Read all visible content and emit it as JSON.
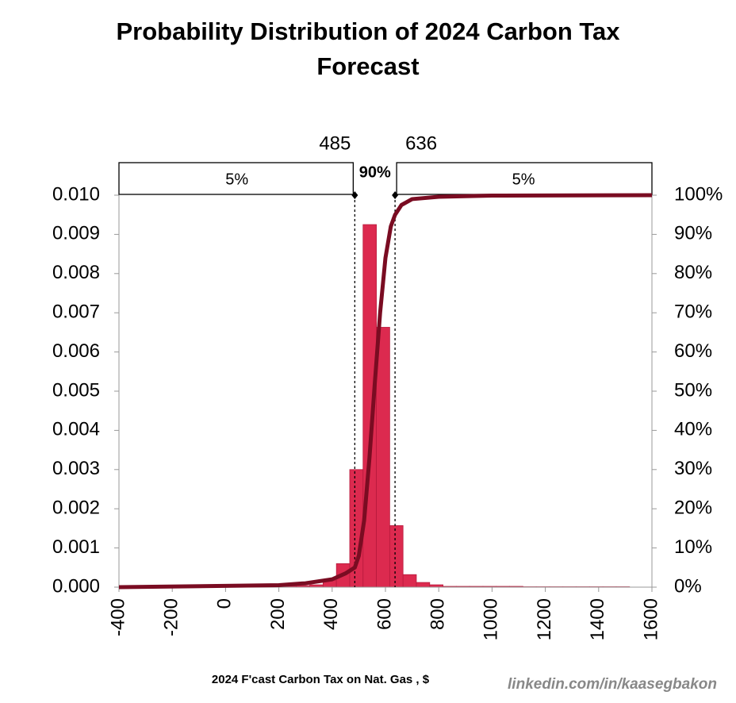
{
  "chart_data": {
    "type": "histogram",
    "title": "Probability Distribution of 2024 Carbon Tax Forecast",
    "x_label": "2024 F'cast Carbon Tax on Nat. Gas , $",
    "watermark": "linkedin.com/in/kaasegbakon",
    "bins": [
      -384,
      -334,
      -284,
      -234,
      -184,
      -134,
      -84,
      -34,
      16,
      66,
      116,
      166,
      216,
      266,
      316,
      366,
      416,
      466,
      516,
      566,
      616,
      666,
      716,
      766,
      816,
      866,
      916,
      966,
      1016,
      1066,
      1116,
      1166,
      1216,
      1266,
      1316,
      1366,
      1416,
      1466,
      1516
    ],
    "values": [
      1e-05,
      1e-05,
      1e-05,
      1e-05,
      1e-05,
      1e-05,
      1e-05,
      1e-05,
      1e-05,
      1e-05,
      1e-05,
      1e-05,
      3e-05,
      4e-05,
      6e-05,
      0.00018,
      0.0006,
      0.003,
      0.00925,
      0.00663,
      0.00157,
      0.00032,
      0.00012,
      6e-05,
      2e-05,
      2e-05,
      2e-05,
      2e-05,
      2e-05,
      2e-05,
      1e-05,
      1e-05,
      1e-05,
      1e-05,
      1e-05,
      1e-05,
      1e-05,
      1e-05
    ],
    "color": "#dc2a4f",
    "cdf": {
      "axis": "y2",
      "color": "#7a0c22",
      "x": [
        -400,
        200,
        300,
        400,
        450,
        485,
        500,
        520,
        540,
        560,
        580,
        600,
        620,
        636,
        660,
        700,
        800,
        1000,
        1600
      ],
      "values": [
        0,
        0.5,
        1,
        2,
        3.5,
        5,
        8,
        17,
        33,
        52,
        70,
        84,
        92,
        95,
        97.5,
        99,
        99.6,
        99.9,
        100
      ]
    },
    "markers": [
      485,
      636
    ],
    "region_labels": [
      "5%",
      "90%",
      "5%"
    ],
    "xlim": [
      -400,
      1600
    ],
    "xticks": [
      -400,
      -200,
      0,
      200,
      400,
      600,
      800,
      1000,
      1200,
      1400,
      1600
    ],
    "ylim": [
      0,
      0.01
    ],
    "yticks": [
      {
        "value": 0,
        "label": "0.000"
      },
      0.001,
      0.002,
      0.003,
      0.004,
      0.005,
      0.006,
      0.007,
      0.008,
      0.009,
      {
        "value": 0.01,
        "label": "0.010"
      }
    ],
    "y2lim": [
      0,
      100
    ],
    "y2ticks": [
      {
        "value": 0,
        "label": "0%"
      },
      {
        "value": 10,
        "label": "10%"
      },
      {
        "value": 20,
        "label": "20%"
      },
      {
        "value": 30,
        "label": "30%"
      },
      {
        "value": 40,
        "label": "40%"
      },
      {
        "value": 50,
        "label": "50%"
      },
      {
        "value": 60,
        "label": "60%"
      },
      {
        "value": 70,
        "label": "70%"
      },
      {
        "value": 80,
        "label": "80%"
      },
      {
        "value": 90,
        "label": "90%"
      },
      {
        "value": 100,
        "label": "100%"
      }
    ]
  }
}
